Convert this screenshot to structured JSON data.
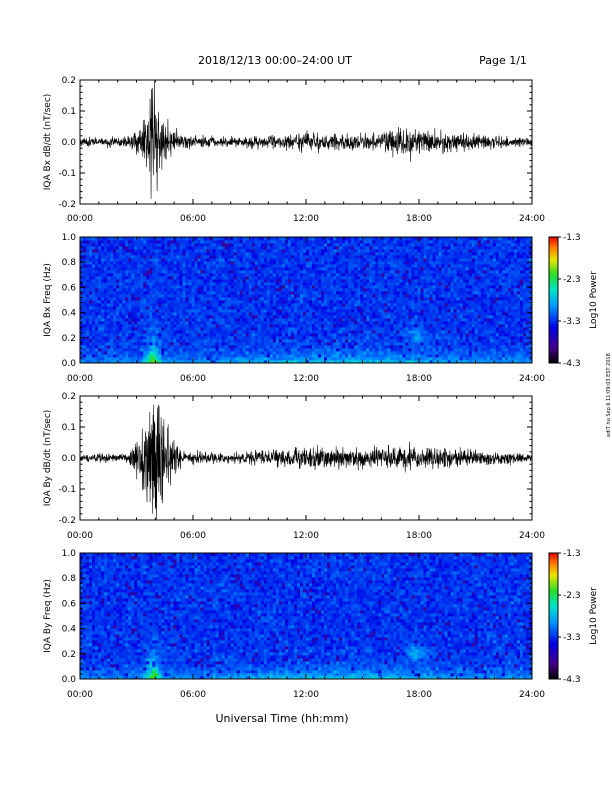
{
  "header": {
    "title": "2018/12/13   00:00–24:00 UT",
    "page": "Page 1/1"
  },
  "footer": {
    "xlabel": "Universal Time (hh:mm)",
    "side_note": "ediT hu Sep 6 11:09:03 EST 2018"
  },
  "chart_data": [
    {
      "type": "line",
      "ylabel": "IQA Bx dB/dt (nT/sec)",
      "xlim": [
        0,
        24
      ],
      "ylim": [
        -0.2,
        0.2
      ],
      "yticks": [
        "0.2",
        "0.1",
        "0.0",
        "-0.1",
        "-0.2"
      ],
      "xticks": [
        "00:00",
        "06:00",
        "12:00",
        "18:00",
        "24:00"
      ],
      "envelope": {
        "hours": [
          0,
          2.5,
          3.2,
          3.6,
          3.8,
          4.0,
          4.3,
          4.8,
          5.5,
          8,
          10,
          12,
          14,
          16,
          17.5,
          18.2,
          20,
          22,
          24
        ],
        "amplitude": [
          0.012,
          0.015,
          0.05,
          0.12,
          0.2,
          0.18,
          0.1,
          0.04,
          0.02,
          0.015,
          0.025,
          0.03,
          0.025,
          0.025,
          0.045,
          0.035,
          0.03,
          0.02,
          0.012
        ]
      }
    },
    {
      "type": "heatmap",
      "ylabel": "IQA Bx Freq (Hz)",
      "xlim": [
        0,
        24
      ],
      "ylim": [
        0,
        1.0
      ],
      "yticks": [
        "1.0",
        "0.8",
        "0.6",
        "0.4",
        "0.2",
        "0.0"
      ],
      "xticks": [
        "00:00",
        "06:00",
        "12:00",
        "18:00",
        "24:00"
      ],
      "colorbar": {
        "label": "Log10 Power",
        "ticks": [
          "-1.3",
          "-2.3",
          "-3.3",
          "-4.3"
        ],
        "range": [
          -4.3,
          -1.3
        ]
      }
    },
    {
      "type": "line",
      "ylabel": "IQA By dB/dt (nT/sec)",
      "xlim": [
        0,
        24
      ],
      "ylim": [
        -0.2,
        0.2
      ],
      "yticks": [
        "0.2",
        "0.1",
        "0.0",
        "-0.1",
        "-0.2"
      ],
      "xticks": [
        "00:00",
        "06:00",
        "12:00",
        "18:00",
        "24:00"
      ],
      "envelope": {
        "hours": [
          0,
          2.5,
          3.0,
          3.5,
          3.8,
          4.1,
          4.5,
          5.0,
          5.5,
          8,
          10,
          12,
          14,
          16,
          17.5,
          18.2,
          20,
          22,
          24
        ],
        "amplitude": [
          0.012,
          0.015,
          0.05,
          0.12,
          0.22,
          0.22,
          0.15,
          0.06,
          0.02,
          0.015,
          0.025,
          0.035,
          0.03,
          0.03,
          0.04,
          0.035,
          0.03,
          0.02,
          0.012
        ]
      }
    },
    {
      "type": "heatmap",
      "ylabel": "IQA By Freq (Hz)",
      "xlim": [
        0,
        24
      ],
      "ylim": [
        0,
        1.0
      ],
      "yticks": [
        "1.0",
        "0.8",
        "0.6",
        "0.4",
        "0.2",
        "0.0"
      ],
      "xticks": [
        "00:00",
        "06:00",
        "12:00",
        "18:00",
        "24:00"
      ],
      "colorbar": {
        "label": "Log10 Power",
        "ticks": [
          "-1.3",
          "-2.3",
          "-3.3",
          "-4.3"
        ],
        "range": [
          -4.3,
          -1.3
        ]
      }
    }
  ]
}
